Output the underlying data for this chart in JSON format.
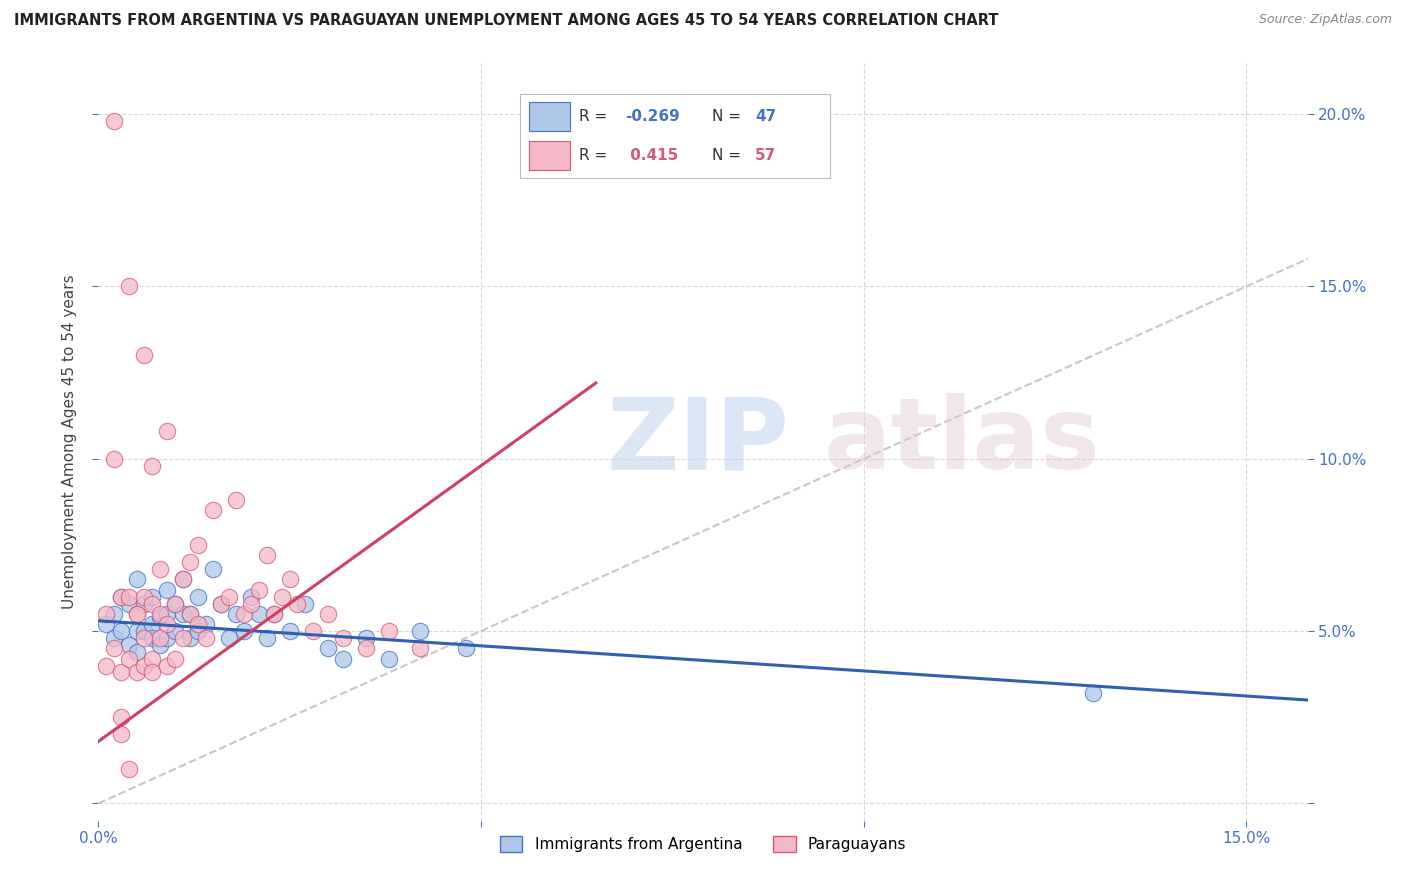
{
  "title": "IMMIGRANTS FROM ARGENTINA VS PARAGUAYAN UNEMPLOYMENT AMONG AGES 45 TO 54 YEARS CORRELATION CHART",
  "source": "Source: ZipAtlas.com",
  "ylabel_left": "Unemployment Among Ages 45 to 54 years",
  "xlim": [
    0.0,
    0.158
  ],
  "ylim": [
    -0.005,
    0.215
  ],
  "legend_label1": "Immigrants from Argentina",
  "legend_label2": "Paraguayans",
  "blue_fill": "#aec6e8",
  "pink_fill": "#f4b8c8",
  "blue_edge": "#4472c4",
  "pink_edge": "#d45a78",
  "blue_line": "#3060b0",
  "pink_line": "#d04060",
  "diag_color": "#c8c8c8",
  "grid_color": "#d8d8d8",
  "tick_color": "#4472c4",
  "blue_scatter_x": [
    0.001,
    0.002,
    0.002,
    0.003,
    0.003,
    0.004,
    0.004,
    0.005,
    0.005,
    0.005,
    0.006,
    0.006,
    0.007,
    0.007,
    0.007,
    0.008,
    0.008,
    0.009,
    0.009,
    0.009,
    0.01,
    0.01,
    0.011,
    0.011,
    0.012,
    0.012,
    0.013,
    0.013,
    0.014,
    0.015,
    0.016,
    0.017,
    0.018,
    0.019,
    0.02,
    0.021,
    0.022,
    0.023,
    0.025,
    0.027,
    0.03,
    0.032,
    0.035,
    0.038,
    0.042,
    0.048,
    0.13
  ],
  "blue_scatter_y": [
    0.052,
    0.048,
    0.055,
    0.05,
    0.06,
    0.046,
    0.058,
    0.05,
    0.044,
    0.065,
    0.05,
    0.058,
    0.052,
    0.048,
    0.06,
    0.054,
    0.046,
    0.055,
    0.048,
    0.062,
    0.05,
    0.058,
    0.055,
    0.065,
    0.048,
    0.055,
    0.06,
    0.05,
    0.052,
    0.068,
    0.058,
    0.048,
    0.055,
    0.05,
    0.06,
    0.055,
    0.048,
    0.055,
    0.05,
    0.058,
    0.045,
    0.042,
    0.048,
    0.042,
    0.05,
    0.045,
    0.032
  ],
  "pink_scatter_x": [
    0.001,
    0.001,
    0.002,
    0.002,
    0.003,
    0.003,
    0.003,
    0.004,
    0.004,
    0.005,
    0.005,
    0.005,
    0.006,
    0.006,
    0.006,
    0.007,
    0.007,
    0.007,
    0.008,
    0.008,
    0.008,
    0.009,
    0.009,
    0.01,
    0.01,
    0.011,
    0.011,
    0.012,
    0.012,
    0.013,
    0.013,
    0.014,
    0.015,
    0.016,
    0.017,
    0.018,
    0.019,
    0.02,
    0.021,
    0.022,
    0.023,
    0.024,
    0.025,
    0.026,
    0.028,
    0.03,
    0.032,
    0.035,
    0.038,
    0.042,
    0.002,
    0.004,
    0.006,
    0.007,
    0.003,
    0.009,
    0.004
  ],
  "pink_scatter_y": [
    0.055,
    0.04,
    0.1,
    0.045,
    0.06,
    0.038,
    0.025,
    0.042,
    0.06,
    0.055,
    0.038,
    0.055,
    0.04,
    0.048,
    0.06,
    0.042,
    0.058,
    0.038,
    0.055,
    0.048,
    0.068,
    0.052,
    0.04,
    0.058,
    0.042,
    0.065,
    0.048,
    0.055,
    0.07,
    0.052,
    0.075,
    0.048,
    0.085,
    0.058,
    0.06,
    0.088,
    0.055,
    0.058,
    0.062,
    0.072,
    0.055,
    0.06,
    0.065,
    0.058,
    0.05,
    0.055,
    0.048,
    0.045,
    0.05,
    0.045,
    0.198,
    0.15,
    0.13,
    0.098,
    0.02,
    0.108,
    0.01
  ]
}
